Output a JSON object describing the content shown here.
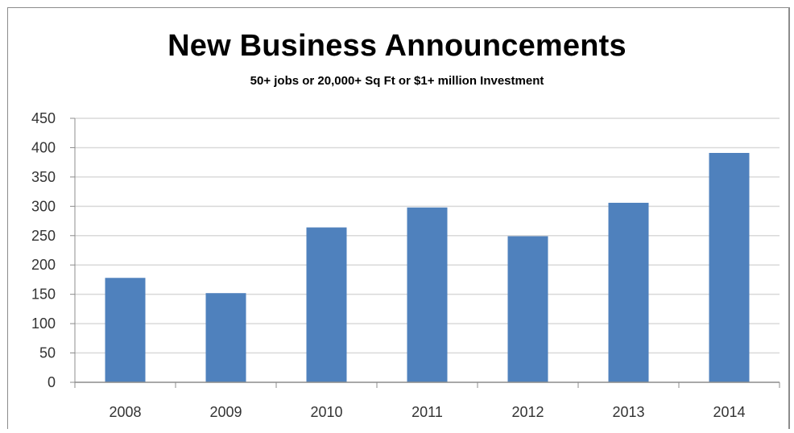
{
  "chart_data": {
    "type": "bar",
    "title": "New Business Announcements",
    "subtitle": "50+ jobs or 20,000+ Sq Ft or $1+ million Investment",
    "categories": [
      "2008",
      "2009",
      "2010",
      "2011",
      "2012",
      "2013",
      "2014"
    ],
    "values": [
      178,
      152,
      264,
      298,
      249,
      306,
      391
    ],
    "ylim": [
      0,
      450
    ],
    "yticks": [
      0,
      50,
      100,
      150,
      200,
      250,
      300,
      350,
      400,
      450
    ],
    "xlabel": "",
    "ylabel": "",
    "grid": true,
    "legend": "none",
    "bar_color": "#4f81bd",
    "grid_color": "#d9d9d9"
  }
}
